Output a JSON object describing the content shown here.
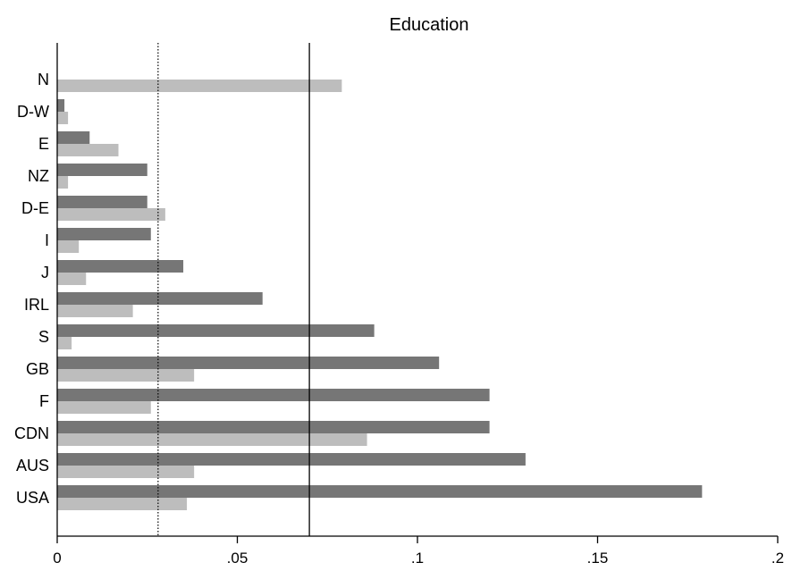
{
  "chart_data": {
    "type": "bar",
    "orientation": "horizontal",
    "title": "Education",
    "categories": [
      "N",
      "D-W",
      "E",
      "NZ",
      "D-E",
      "I",
      "J",
      "IRL",
      "S",
      "GB",
      "F",
      "CDN",
      "AUS",
      "USA"
    ],
    "series": [
      {
        "color": "#767676",
        "values": [
          0.0,
          0.002,
          0.009,
          0.025,
          0.025,
          0.026,
          0.035,
          0.057,
          0.088,
          0.106,
          0.12,
          0.12,
          0.13,
          0.179
        ]
      },
      {
        "color": "#bdbdbd",
        "values": [
          0.079,
          0.003,
          0.017,
          0.003,
          0.03,
          0.006,
          0.008,
          0.021,
          0.004,
          0.038,
          0.026,
          0.086,
          0.038,
          0.036
        ]
      }
    ],
    "xlim": [
      0,
      0.2
    ],
    "xticks": [
      0,
      0.05,
      0.1,
      0.15,
      0.2
    ],
    "xtick_labels": [
      "0",
      ".05",
      ".1",
      ".15",
      ".2"
    ],
    "reference_lines": [
      {
        "value": 0.028,
        "style": "dotted"
      },
      {
        "value": 0.07,
        "style": "solid"
      }
    ],
    "grid": false,
    "legend": "none"
  }
}
